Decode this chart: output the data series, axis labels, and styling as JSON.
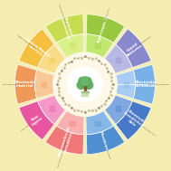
{
  "figsize": [
    1.89,
    1.89
  ],
  "dpi": 100,
  "bg_color": "#f5edb0",
  "r_outer": 0.88,
  "r_mid": 0.63,
  "r_inner": 0.4,
  "r_center": 0.22,
  "segments": [
    {
      "label": "Liquid\nBatteries",
      "t1": 55,
      "t2": 95,
      "outer_color": "#8888cc",
      "inner_color": "#b0b8e0",
      "label_color": "white",
      "img_color": "#9090cc"
    },
    {
      "label": "Electrode\nFormation",
      "t1": 15,
      "t2": 55,
      "outer_color": "#7ab0e8",
      "inner_color": "#a8ccf0",
      "label_color": "white",
      "img_color": "#88b8e8"
    },
    {
      "label": "Chemical\nCrosslinked\nGels",
      "t1": 340,
      "t2": 15,
      "outer_color": "#4878c8",
      "inner_color": "#80a8e0",
      "label_color": "white",
      "img_color": "#5880c0"
    },
    {
      "label": "Membrane",
      "t1": 295,
      "t2": 340,
      "outer_color": "#5898d8",
      "inner_color": "#90bce8",
      "label_color": "white",
      "img_color": "#6090cc"
    },
    {
      "label": "Macromolecule\nDerivatives",
      "t1": 230,
      "t2": 295,
      "outer_color": "#f07878",
      "inner_color": "#f8b0b0",
      "label_color": "white",
      "img_color": "#f08080"
    },
    {
      "label": "Raw\nLignin",
      "t1": 180,
      "t2": 230,
      "outer_color": "#e855a0",
      "inner_color": "#f498c8",
      "label_color": "white",
      "img_color": "#e060a8"
    },
    {
      "label": "Electrode\nMaterial",
      "t1": 130,
      "t2": 180,
      "outer_color": "#f09858",
      "inner_color": "#f8c898",
      "label_color": "white",
      "img_color": "#f09858"
    },
    {
      "label": "Carbon-Based\nCarriers",
      "t1": 90,
      "t2": 130,
      "outer_color": "#f5c040",
      "inner_color": "#f8dc80",
      "label_color": "white",
      "img_color": "#f0c050"
    },
    {
      "label": "Separator\nModification",
      "t1": 55,
      "t2": 90,
      "outer_color": "#c0d848",
      "inner_color": "#d8ee88",
      "label_color": "white",
      "img_color": "#c8dc50"
    },
    {
      "label": "Supercapacitor",
      "t1": 295,
      "t2": 55,
      "outer_color": "#90c030",
      "inner_color": "#b8dc60",
      "label_color": "white",
      "img_color": "#98c840"
    }
  ],
  "outer_label_fontsize": 3.0,
  "inner_label_fontsize": 3.8,
  "center_bg": "#fefef8",
  "molecular_color": "#c8b890",
  "trunk_color": "#8B5A2B",
  "canopy_colors": [
    "#4a9a4a",
    "#5aaa5a",
    "#6ab86a"
  ]
}
